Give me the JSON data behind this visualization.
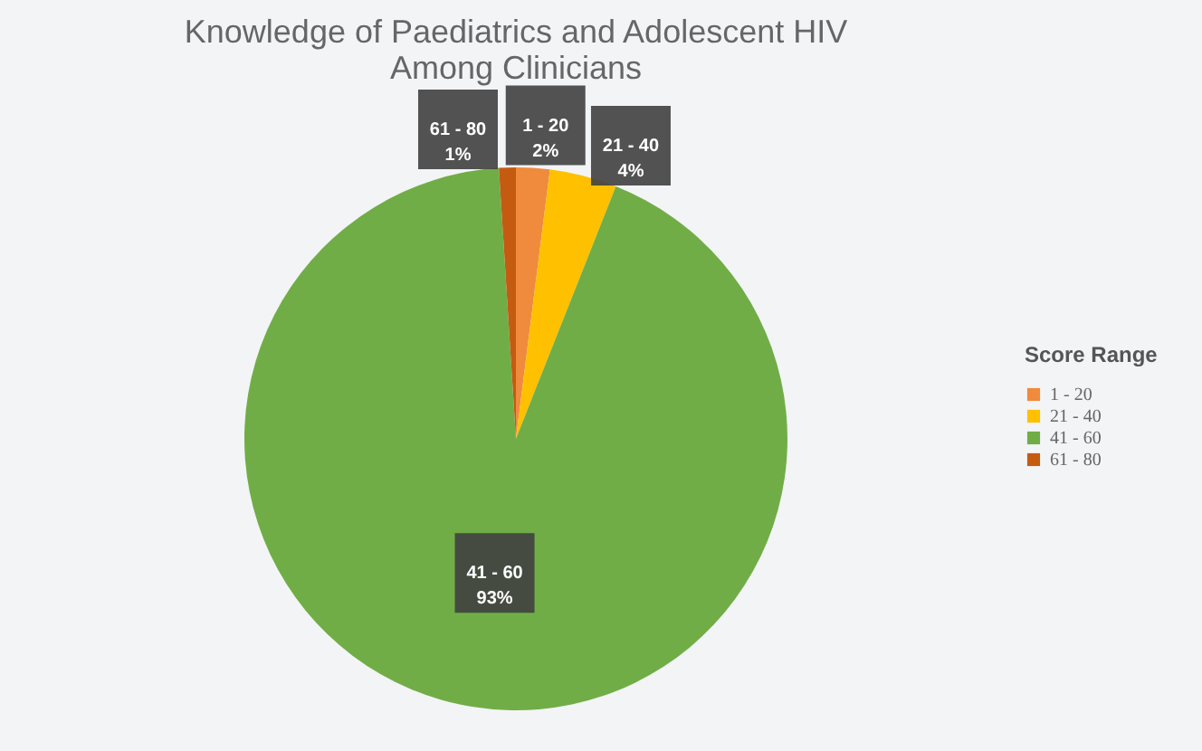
{
  "chart_data": {
    "type": "pie",
    "title": [
      "Knowledge of Paediatrics and Adolescent HIV",
      "Among Clinicians"
    ],
    "legend_title": "Score Range",
    "categories": [
      "1 - 20",
      "21 - 40",
      "41 - 60",
      "61 - 80"
    ],
    "values": [
      2,
      4,
      93,
      1
    ],
    "value_labels": [
      "2%",
      "4%",
      "93%",
      "1%"
    ],
    "colors": [
      "#f08a3c",
      "#ffc000",
      "#70ad47",
      "#c55a11"
    ],
    "legend": "right"
  }
}
